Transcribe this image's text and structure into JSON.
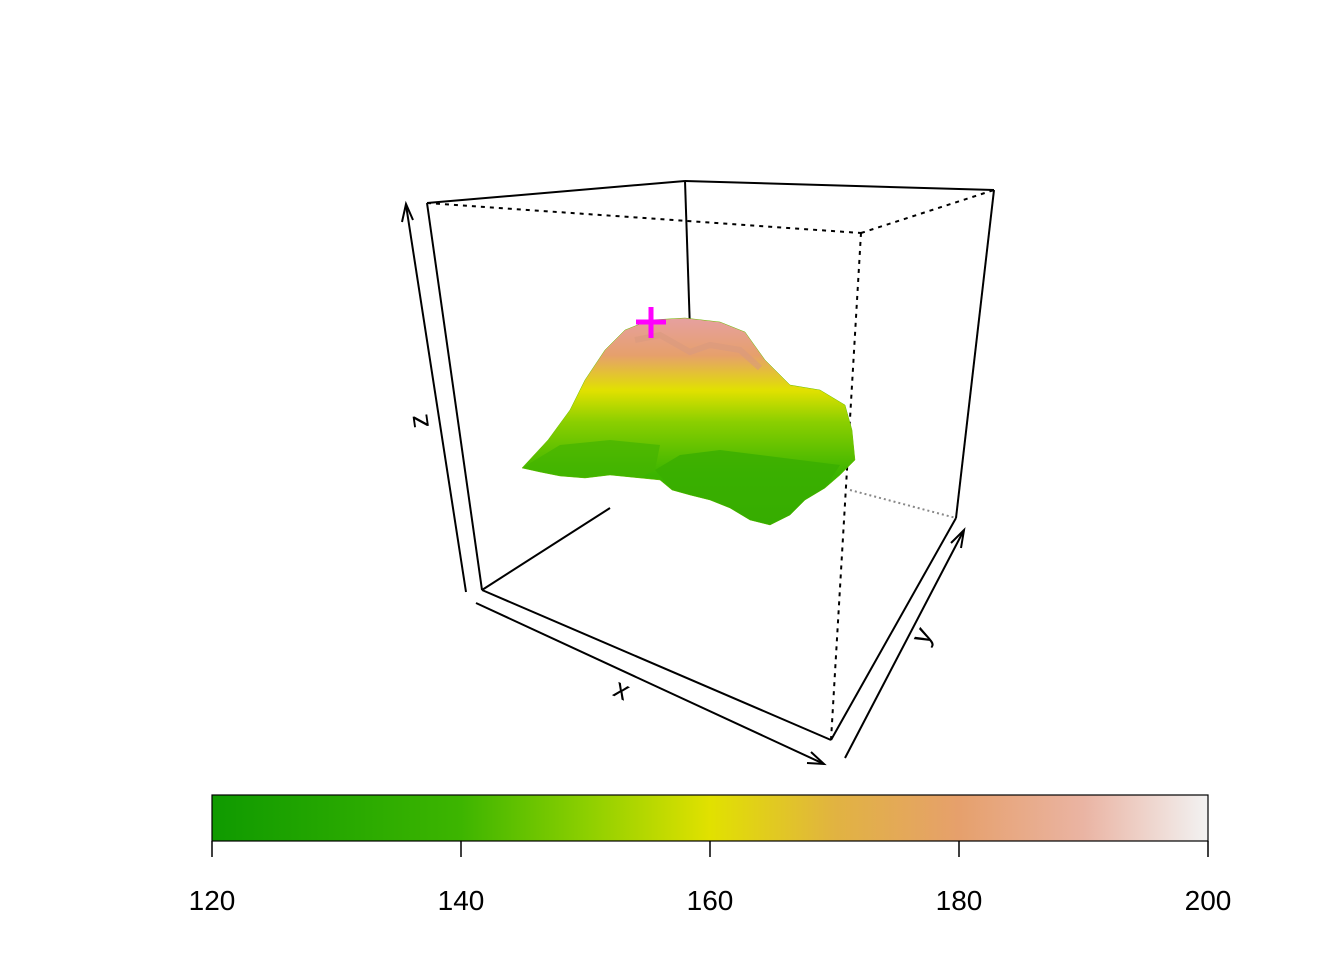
{
  "chart_data": {
    "type": "surface3d",
    "title": "",
    "xlabel": "x",
    "ylabel": "y",
    "zlabel": "z",
    "colorbar": {
      "ticks": [
        "120",
        "140",
        "160",
        "180",
        "200"
      ],
      "range": [
        120,
        200
      ],
      "color_stops": [
        {
          "value": 120,
          "color": "#0f9a00"
        },
        {
          "value": 140,
          "color": "#3db500"
        },
        {
          "value": 150,
          "color": "#8ccf00"
        },
        {
          "value": 160,
          "color": "#e1e100"
        },
        {
          "value": 170,
          "color": "#e1b341"
        },
        {
          "value": 180,
          "color": "#e6a06c"
        },
        {
          "value": 190,
          "color": "#eab4a3"
        },
        {
          "value": 200,
          "color": "#f2f2f2"
        }
      ]
    },
    "surface": {
      "description_values": "volcano-like elevation surface",
      "z_min": 120,
      "z_max": 190
    },
    "marker": {
      "symbol": "+",
      "color": "#ff00ff",
      "meaning": "maximum point"
    }
  }
}
